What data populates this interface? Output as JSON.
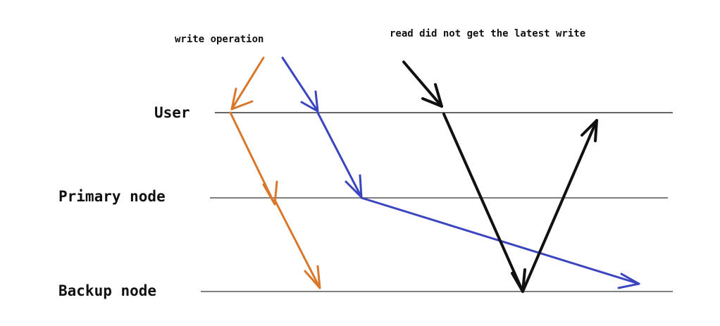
{
  "lanes": {
    "user": "User",
    "primary": "Primary node",
    "backup": "Backup node"
  },
  "annotations": {
    "write": "write operation",
    "read": "read did not get the latest write"
  },
  "colors": {
    "orange": "#d9772b",
    "blue": "#3b45c0",
    "black": "#111111",
    "lane_line": "#333333"
  }
}
